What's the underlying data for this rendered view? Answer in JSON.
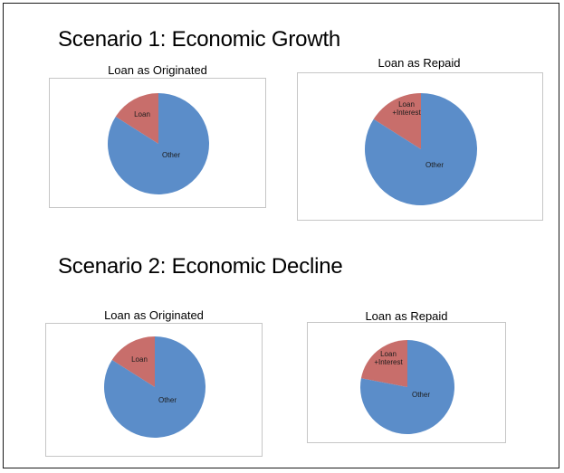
{
  "colors": {
    "other": "#5b8dc9",
    "loan": "#c86e6b",
    "frame": "#1a1a1a",
    "chart_border": "#c6c6c6"
  },
  "scenarios": [
    {
      "heading": "Scenario 1: Economic Growth"
    },
    {
      "heading": "Scenario 2: Economic Decline"
    }
  ],
  "chart_data": [
    {
      "type": "pie",
      "title": "Loan as Originated",
      "slices": [
        {
          "label": "Loan",
          "value": 16
        },
        {
          "label": "Other",
          "value": 84
        }
      ]
    },
    {
      "type": "pie",
      "title": "Loan as Repaid",
      "slices": [
        {
          "label": "Loan\n+Interest",
          "value": 16
        },
        {
          "label": "Other",
          "value": 84
        }
      ]
    },
    {
      "type": "pie",
      "title": "Loan as Originated",
      "slices": [
        {
          "label": "Loan",
          "value": 16
        },
        {
          "label": "Other",
          "value": 84
        }
      ]
    },
    {
      "type": "pie",
      "title": "Loan as Repaid",
      "slices": [
        {
          "label": "Loan\n+Interest",
          "value": 22
        },
        {
          "label": "Other",
          "value": 78
        }
      ]
    }
  ]
}
